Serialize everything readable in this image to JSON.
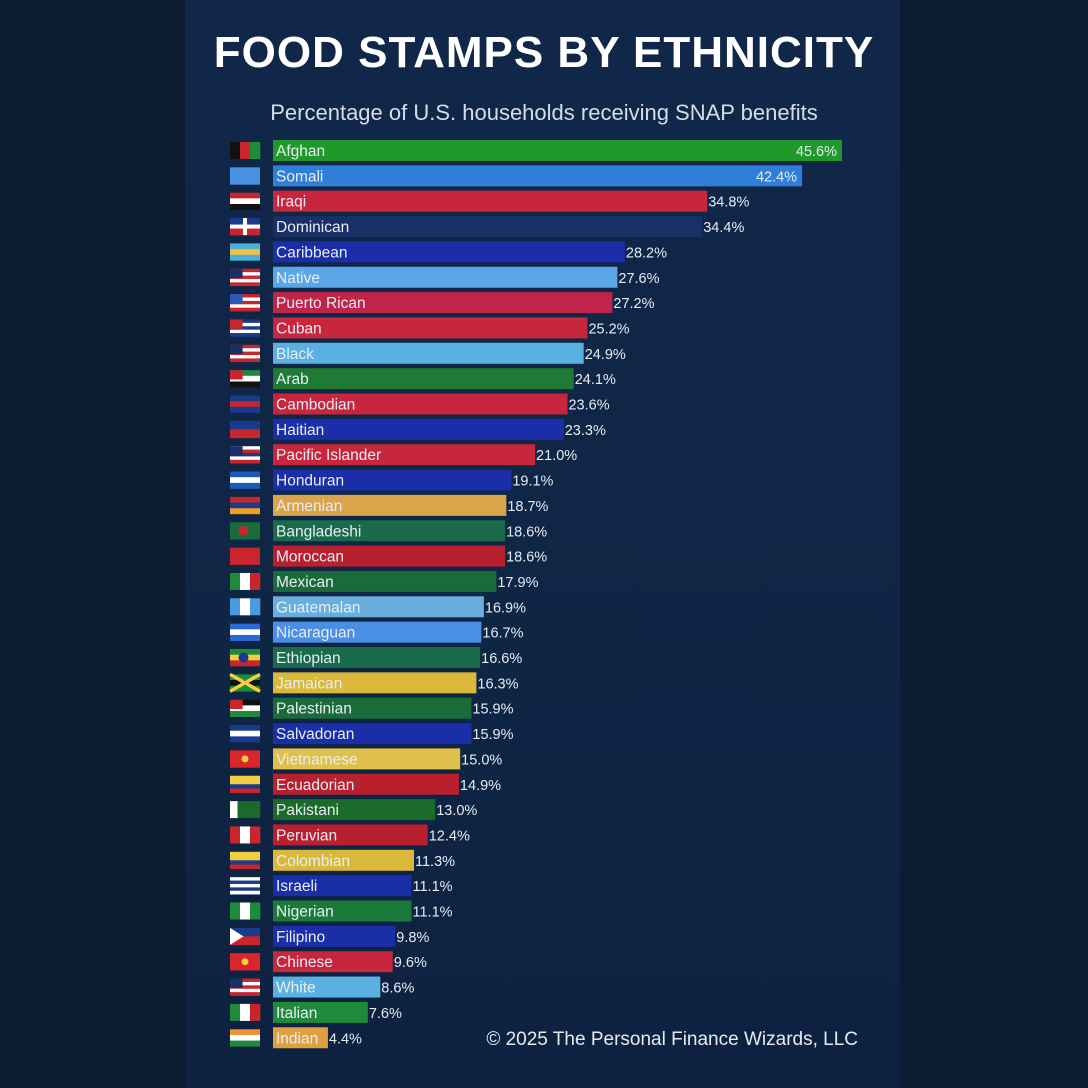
{
  "header": {
    "title": "FOOD STAMPS BY ETHNICITY",
    "subtitle": "Percentage of U.S. households receiving SNAP benefits"
  },
  "footer": {
    "credit": "© 2025 The Personal Finance Wizards, LLC"
  },
  "chart_data": {
    "type": "bar",
    "orientation": "horizontal",
    "title": "FOOD STAMPS BY ETHNICITY",
    "subtitle": "Percentage of U.S. households receiving SNAP benefits",
    "unit": "%",
    "xlim": [
      0,
      45.6
    ],
    "grid": false,
    "categories": [
      "Afghan",
      "Somali",
      "Iraqi",
      "Dominican",
      "Caribbean",
      "Native",
      "Puerto Rican",
      "Cuban",
      "Black",
      "Arab",
      "Cambodian",
      "Haitian",
      "Pacific Islander",
      "Honduran",
      "Armenian",
      "Bangladeshi",
      "Moroccan",
      "Mexican",
      "Guatemalan",
      "Nicaraguan",
      "Ethiopian",
      "Jamaican",
      "Palestinian",
      "Salvadoran",
      "Vietnamese",
      "Ecuadorian",
      "Pakistani",
      "Peruvian",
      "Colombian",
      "Israeli",
      "Nigerian",
      "Filipino",
      "Chinese",
      "White",
      "Italian",
      "Indian"
    ],
    "values": [
      45.6,
      42.4,
      34.8,
      34.4,
      28.2,
      27.6,
      27.2,
      25.2,
      24.9,
      24.1,
      23.6,
      23.3,
      21.0,
      19.1,
      18.7,
      18.6,
      18.6,
      17.9,
      16.9,
      16.7,
      16.6,
      16.3,
      15.9,
      15.9,
      15.0,
      14.9,
      13.0,
      12.4,
      11.3,
      11.1,
      11.1,
      9.8,
      9.6,
      8.6,
      7.6,
      4.4
    ],
    "value_labels": [
      "45.6%",
      "42.4%",
      "34.8%",
      "34.4%",
      "28.2%",
      "27.6%",
      "27.2%",
      "25.2%",
      "24.9%",
      "24.1%",
      "23.6%",
      "23.3%",
      "21.0%",
      "19.1%",
      "18.7%",
      "18.6%",
      "18.6%",
      "17.9%",
      "16.9%",
      "16.7%",
      "16.6%",
      "16.3%",
      "15.9%",
      "15.9%",
      "15.0%",
      "14.9%",
      "13.0%",
      "12.4%",
      "11.3%",
      "11.1%",
      "11.1%",
      "9.8%",
      "9.6%",
      "8.6%",
      "7.6%",
      "4.4%"
    ],
    "colors": [
      "#1f9a2a",
      "#2f7fd8",
      "#c8263c",
      "#1a2f66",
      "#1a2ea8",
      "#5aa6e6",
      "#c02448",
      "#c8263c",
      "#5ab0e0",
      "#1f7a34",
      "#c8263c",
      "#1a2ea8",
      "#c8263c",
      "#1a2ea8",
      "#d9a44a",
      "#1a6b4a",
      "#b8202e",
      "#1a6b3a",
      "#6aaede",
      "#4a8ee6",
      "#1a6b4a",
      "#d9b83a",
      "#1a6b3a",
      "#1a2ea8",
      "#e0c04a",
      "#b8202e",
      "#1a6b2a",
      "#b8202e",
      "#d9b83a",
      "#1a2ea8",
      "#1a7a3a",
      "#1a2ea8",
      "#c8263c",
      "#5ab0e0",
      "#1f8a3a",
      "#e0a040"
    ],
    "flags": [
      {
        "country": "Afghanistan",
        "stripes": [
          "#111111",
          "#c8262c",
          "#1f8a3a"
        ],
        "dir": "v"
      },
      {
        "country": "Somalia",
        "stripes": [
          "#4a90e2"
        ],
        "dir": "h"
      },
      {
        "country": "Iraq",
        "stripes": [
          "#c8262c",
          "#ffffff",
          "#111111"
        ],
        "dir": "h"
      },
      {
        "country": "Dominican Republic",
        "stripes": [
          "#1a3a8c",
          "#c8262c"
        ],
        "dir": "h",
        "cross": "#ffffff"
      },
      {
        "country": "Bahamas",
        "stripes": [
          "#4ab0d8",
          "#f0c040",
          "#4ab0d8"
        ],
        "dir": "h"
      },
      {
        "country": "United States",
        "stripes": [
          "#c8262c",
          "#ffffff",
          "#c8262c",
          "#ffffff",
          "#c8262c"
        ],
        "dir": "h",
        "canton": "#1a2f66"
      },
      {
        "country": "Puerto Rico",
        "stripes": [
          "#c8262c",
          "#ffffff",
          "#c8262c",
          "#ffffff",
          "#c8262c"
        ],
        "dir": "h",
        "canton": "#2a5ab8"
      },
      {
        "country": "Cuba",
        "stripes": [
          "#1a3a8c",
          "#ffffff",
          "#1a3a8c",
          "#ffffff",
          "#1a3a8c"
        ],
        "dir": "h",
        "canton": "#c8262c"
      },
      {
        "country": "United States",
        "stripes": [
          "#c8262c",
          "#ffffff",
          "#c8262c",
          "#ffffff",
          "#c8262c"
        ],
        "dir": "h",
        "canton": "#1a2f66"
      },
      {
        "country": "United Arab Emirates",
        "stripes": [
          "#1f8a3a",
          "#ffffff",
          "#111111"
        ],
        "dir": "h",
        "canton": "#c8262c"
      },
      {
        "country": "Cambodia",
        "stripes": [
          "#1a3a8c",
          "#c8262c",
          "#1a3a8c"
        ],
        "dir": "h"
      },
      {
        "country": "Haiti",
        "stripes": [
          "#1a3a8c",
          "#c8262c"
        ],
        "dir": "h"
      },
      {
        "country": "Hawaii",
        "stripes": [
          "#ffffff",
          "#c8262c",
          "#1a3a8c",
          "#ffffff",
          "#c8262c"
        ],
        "dir": "h",
        "canton": "#1a2f66"
      },
      {
        "country": "Honduras",
        "stripes": [
          "#1a5ab8",
          "#ffffff",
          "#1a5ab8"
        ],
        "dir": "h"
      },
      {
        "country": "Armenia",
        "stripes": [
          "#c8262c",
          "#1a3a8c",
          "#f0a020"
        ],
        "dir": "h"
      },
      {
        "country": "Bangladesh",
        "stripes": [
          "#1a6b3a"
        ],
        "dir": "h",
        "disc": "#c8262c"
      },
      {
        "country": "Morocco",
        "stripes": [
          "#c8262c"
        ],
        "dir": "h"
      },
      {
        "country": "Mexico",
        "stripes": [
          "#1f8a3a",
          "#ffffff",
          "#c8262c"
        ],
        "dir": "v"
      },
      {
        "country": "Guatemala",
        "stripes": [
          "#4a9ae0",
          "#ffffff",
          "#4a9ae0"
        ],
        "dir": "v"
      },
      {
        "country": "Nicaragua",
        "stripes": [
          "#2a6ad0",
          "#ffffff",
          "#2a6ad0"
        ],
        "dir": "h"
      },
      {
        "country": "Ethiopia",
        "stripes": [
          "#1f8a3a",
          "#f0d040",
          "#c8262c"
        ],
        "dir": "h",
        "disc": "#1a3a8c"
      },
      {
        "country": "Jamaica",
        "stripes": [
          "#1f8a3a",
          "#111111",
          "#1f8a3a"
        ],
        "dir": "h",
        "saltire": "#f0d040"
      },
      {
        "country": "Palestine",
        "stripes": [
          "#111111",
          "#ffffff",
          "#1f8a3a"
        ],
        "dir": "h",
        "canton": "#c8262c"
      },
      {
        "country": "El Salvador",
        "stripes": [
          "#1a3a8c",
          "#ffffff",
          "#1a3a8c"
        ],
        "dir": "h"
      },
      {
        "country": "Vietnam",
        "stripes": [
          "#d8262c"
        ],
        "dir": "h",
        "star": "#f0d040"
      },
      {
        "country": "Ecuador",
        "stripes": [
          "#f0d040",
          "#f0d040",
          "#1a3a8c",
          "#c8262c"
        ],
        "dir": "h"
      },
      {
        "country": "Pakistan",
        "stripes": [
          "#ffffff",
          "#1a6b2a",
          "#1a6b2a",
          "#1a6b2a"
        ],
        "dir": "v"
      },
      {
        "country": "Peru",
        "stripes": [
          "#c8262c",
          "#ffffff",
          "#c8262c"
        ],
        "dir": "v"
      },
      {
        "country": "Colombia",
        "stripes": [
          "#f0d040",
          "#f0d040",
          "#1a3a8c",
          "#c8262c"
        ],
        "dir": "h"
      },
      {
        "country": "Israel",
        "stripes": [
          "#ffffff",
          "#1a3a8c",
          "#ffffff",
          "#1a3a8c",
          "#ffffff"
        ],
        "dir": "h"
      },
      {
        "country": "Nigeria",
        "stripes": [
          "#1f8a3a",
          "#ffffff",
          "#1f8a3a"
        ],
        "dir": "v"
      },
      {
        "country": "Philippines",
        "stripes": [
          "#1a3a8c",
          "#c8262c"
        ],
        "dir": "h",
        "triangle": "#ffffff"
      },
      {
        "country": "China",
        "stripes": [
          "#d8262c"
        ],
        "dir": "h",
        "star": "#f0d040"
      },
      {
        "country": "United States",
        "stripes": [
          "#c8262c",
          "#ffffff",
          "#c8262c",
          "#ffffff",
          "#c8262c"
        ],
        "dir": "h",
        "canton": "#1a2f66"
      },
      {
        "country": "Italy",
        "stripes": [
          "#1f8a3a",
          "#ffffff",
          "#c8262c"
        ],
        "dir": "v"
      },
      {
        "country": "India",
        "stripes": [
          "#f09030",
          "#ffffff",
          "#1f8a3a"
        ],
        "dir": "h"
      }
    ]
  }
}
